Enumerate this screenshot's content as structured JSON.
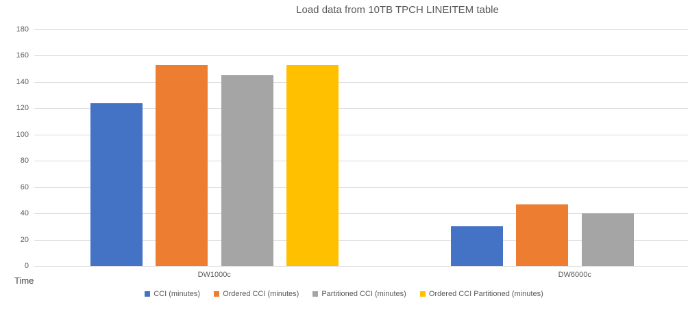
{
  "chart_data": {
    "type": "bar",
    "title": "Load data from 10TB TPCH LINEITEM table",
    "categories": [
      "DW1000c",
      "DW6000c"
    ],
    "series": [
      {
        "name": "CCI (minutes)",
        "color": "#4472C4",
        "values": [
          124,
          30
        ]
      },
      {
        "name": "Ordered CCI (minutes)",
        "color": "#ED7D31",
        "values": [
          153,
          47
        ]
      },
      {
        "name": "Partitioned CCI (minutes)",
        "color": "#A5A5A5",
        "values": [
          145,
          40
        ]
      },
      {
        "name": "Ordered CCI Partitioned (minutes)",
        "color": "#FFC000",
        "values": [
          153,
          null
        ]
      }
    ],
    "xlabel": "",
    "ylabel": "Time",
    "ylim": [
      0,
      180
    ],
    "ytick_step": 20,
    "yticks": [
      0,
      20,
      40,
      60,
      80,
      100,
      120,
      140,
      160,
      180
    ],
    "grid": "horizontal",
    "legend_position": "bottom",
    "colors": {
      "gridline": "#d9d9d9",
      "axis_text": "#595959",
      "title_text": "#595959"
    }
  }
}
